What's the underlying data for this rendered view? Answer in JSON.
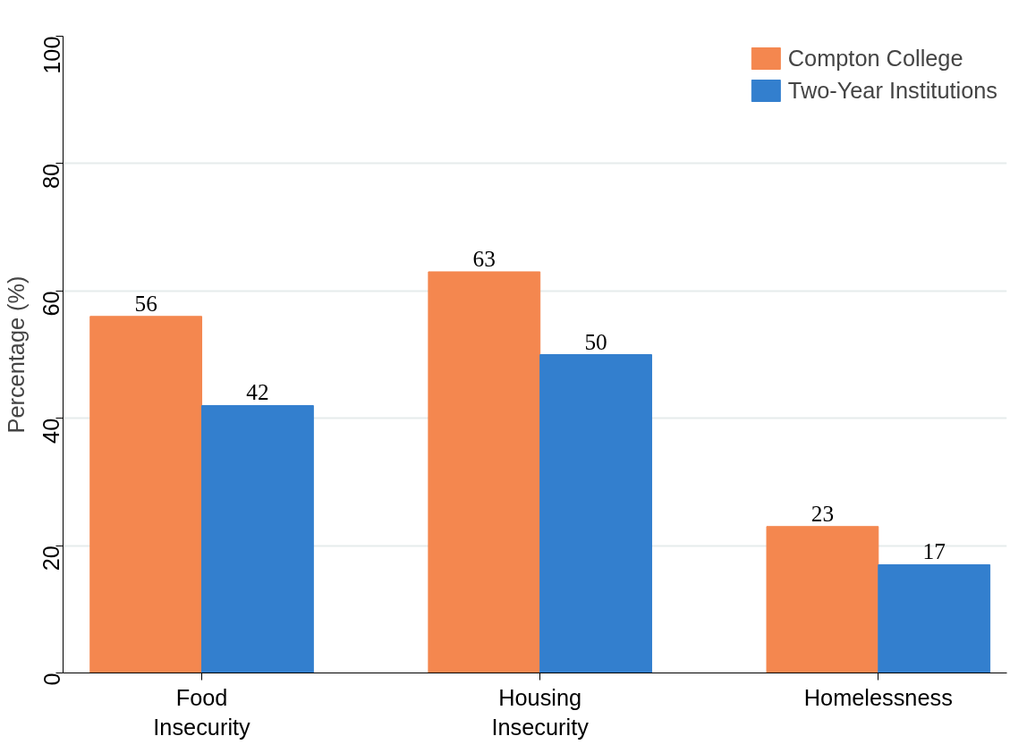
{
  "chart_data": {
    "type": "bar",
    "ylabel": "Percentage (%)",
    "categories": [
      "Food\nInsecurity",
      "Housing\nInsecurity",
      "Homelessness"
    ],
    "series": [
      {
        "name": "Compton College",
        "color": "#f4874f",
        "values": [
          56,
          63,
          23
        ]
      },
      {
        "name": "Two-Year Institutions",
        "color": "#337fce",
        "values": [
          42,
          50,
          17
        ]
      }
    ],
    "ylim": [
      0,
      100
    ],
    "yticks": [
      0,
      20,
      40,
      60,
      80,
      100
    ],
    "grid": "y",
    "legend": "top right",
    "data_labels": true
  }
}
